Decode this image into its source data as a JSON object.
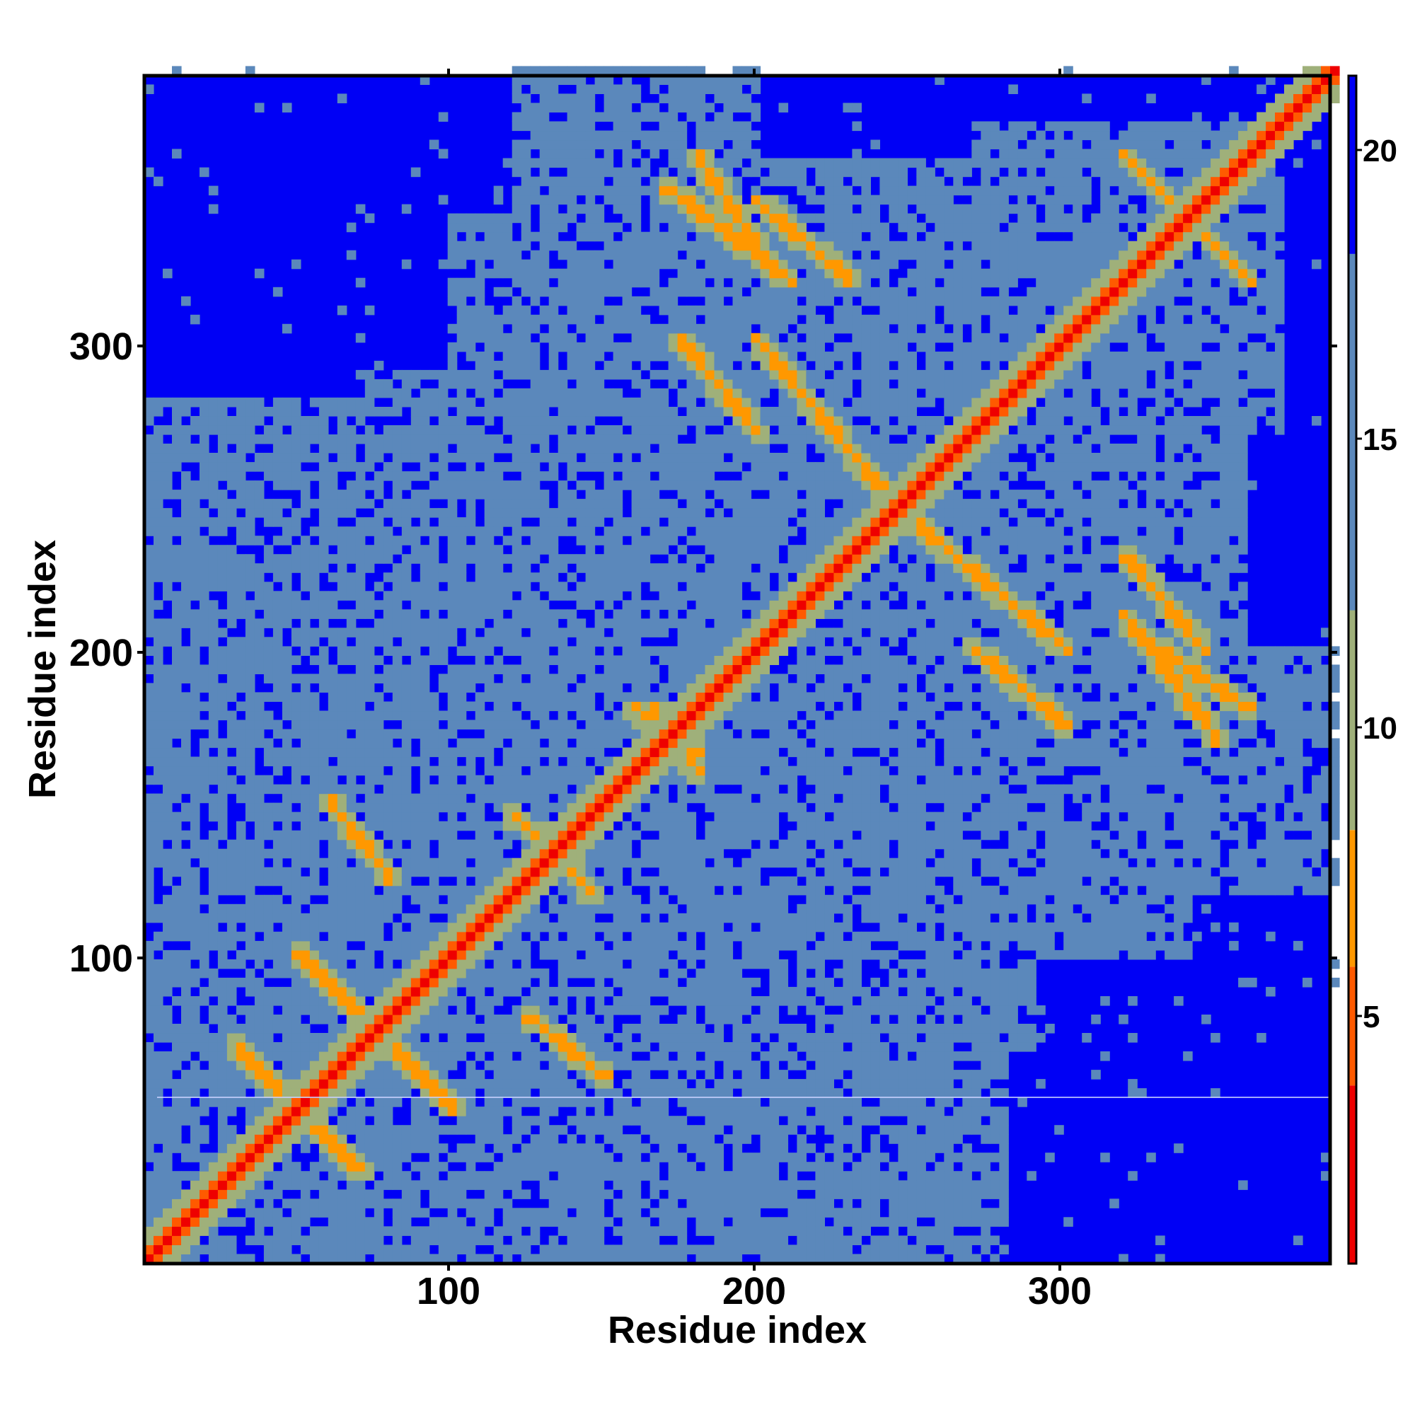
{
  "chart_data": {
    "type": "heatmap",
    "xlabel": "Residue index",
    "ylabel": "Residue index",
    "n_residues": 388,
    "xlim": [
      1,
      388
    ],
    "ylim": [
      1,
      388
    ],
    "x_ticks": [
      100,
      200,
      300
    ],
    "y_ticks": [
      100,
      200,
      300
    ],
    "grid": false,
    "colorbar": {
      "range": [
        1,
        21
      ],
      "ticks": [
        5,
        10,
        15,
        20
      ],
      "bands": [
        {
          "min": 1,
          "max": 4,
          "color": "#ee0000"
        },
        {
          "min": 4,
          "max": 6,
          "color": "#ff5a00"
        },
        {
          "min": 6,
          "max": 8.3,
          "color": "#ff9800"
        },
        {
          "min": 8.3,
          "max": 12,
          "color": "#9fb07a"
        },
        {
          "min": 12,
          "max": 18,
          "color": "#5b88bb"
        },
        {
          "min": 18,
          "max": 21,
          "color": "#0000f5"
        }
      ]
    },
    "background_color": "#0000f5",
    "contact_blocks": [
      [
        1,
        170,
        1,
        170
      ],
      [
        10,
        340,
        100,
        200
      ],
      [
        95,
        280,
        1,
        90
      ],
      [
        170,
        360,
        170,
        360
      ],
      [
        240,
        400,
        120,
        200
      ],
      [
        270,
        360,
        300,
        370
      ],
      [
        170,
        290,
        70,
        150
      ],
      [
        10,
        170,
        180,
        270
      ]
    ],
    "contact_lines": [
      [
        70,
        80,
        100,
        50
      ],
      [
        40,
        60,
        70,
        30
      ],
      [
        60,
        150,
        80,
        125
      ],
      [
        130,
        140,
        145,
        120
      ],
      [
        160,
        180,
        180,
        165
      ],
      [
        240,
        250,
        300,
        200
      ],
      [
        270,
        200,
        300,
        175
      ],
      [
        180,
        360,
        200,
        330
      ],
      [
        320,
        360,
        350,
        330
      ],
      [
        320,
        230,
        345,
        200
      ],
      [
        320,
        210,
        350,
        170
      ]
    ]
  }
}
